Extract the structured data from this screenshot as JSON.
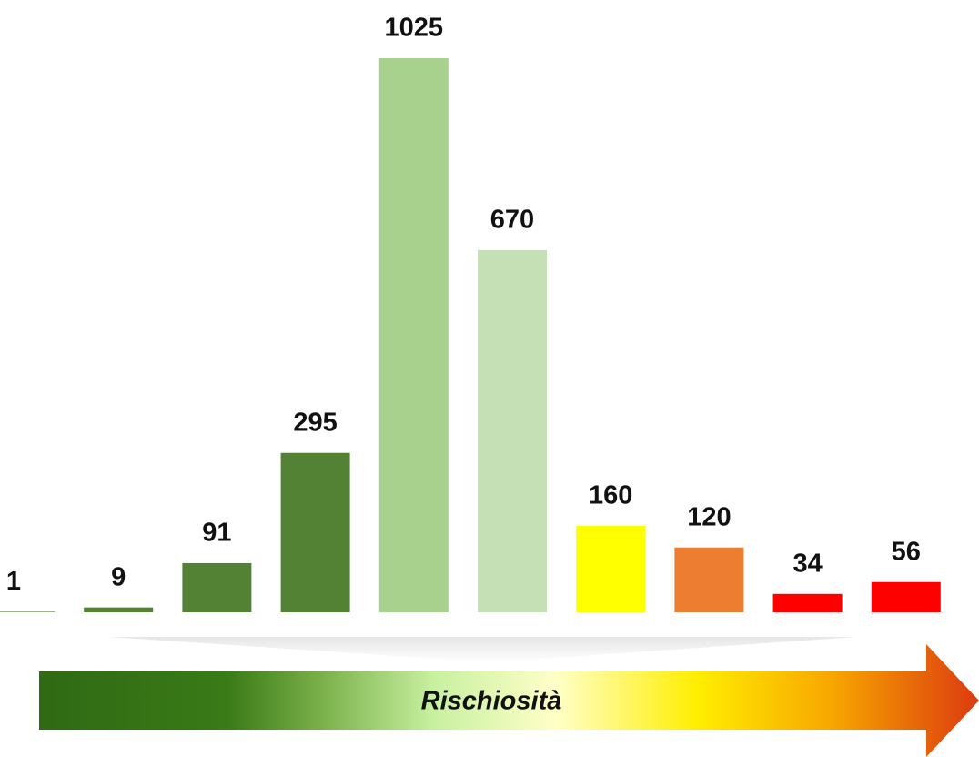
{
  "chart_data": {
    "type": "bar",
    "categories": [
      null,
      null,
      null,
      null,
      null,
      null,
      null,
      null,
      null,
      null
    ],
    "values": [
      1,
      9,
      91,
      295,
      1025,
      670,
      160,
      120,
      34,
      56
    ],
    "colors": [
      "#548235",
      "#548235",
      "#548235",
      "#548235",
      "#a9d18e",
      "#c5e0b4",
      "#ffff00",
      "#ed7d31",
      "#ff0000",
      "#ff0000"
    ],
    "annotation": "Rischiosità"
  }
}
